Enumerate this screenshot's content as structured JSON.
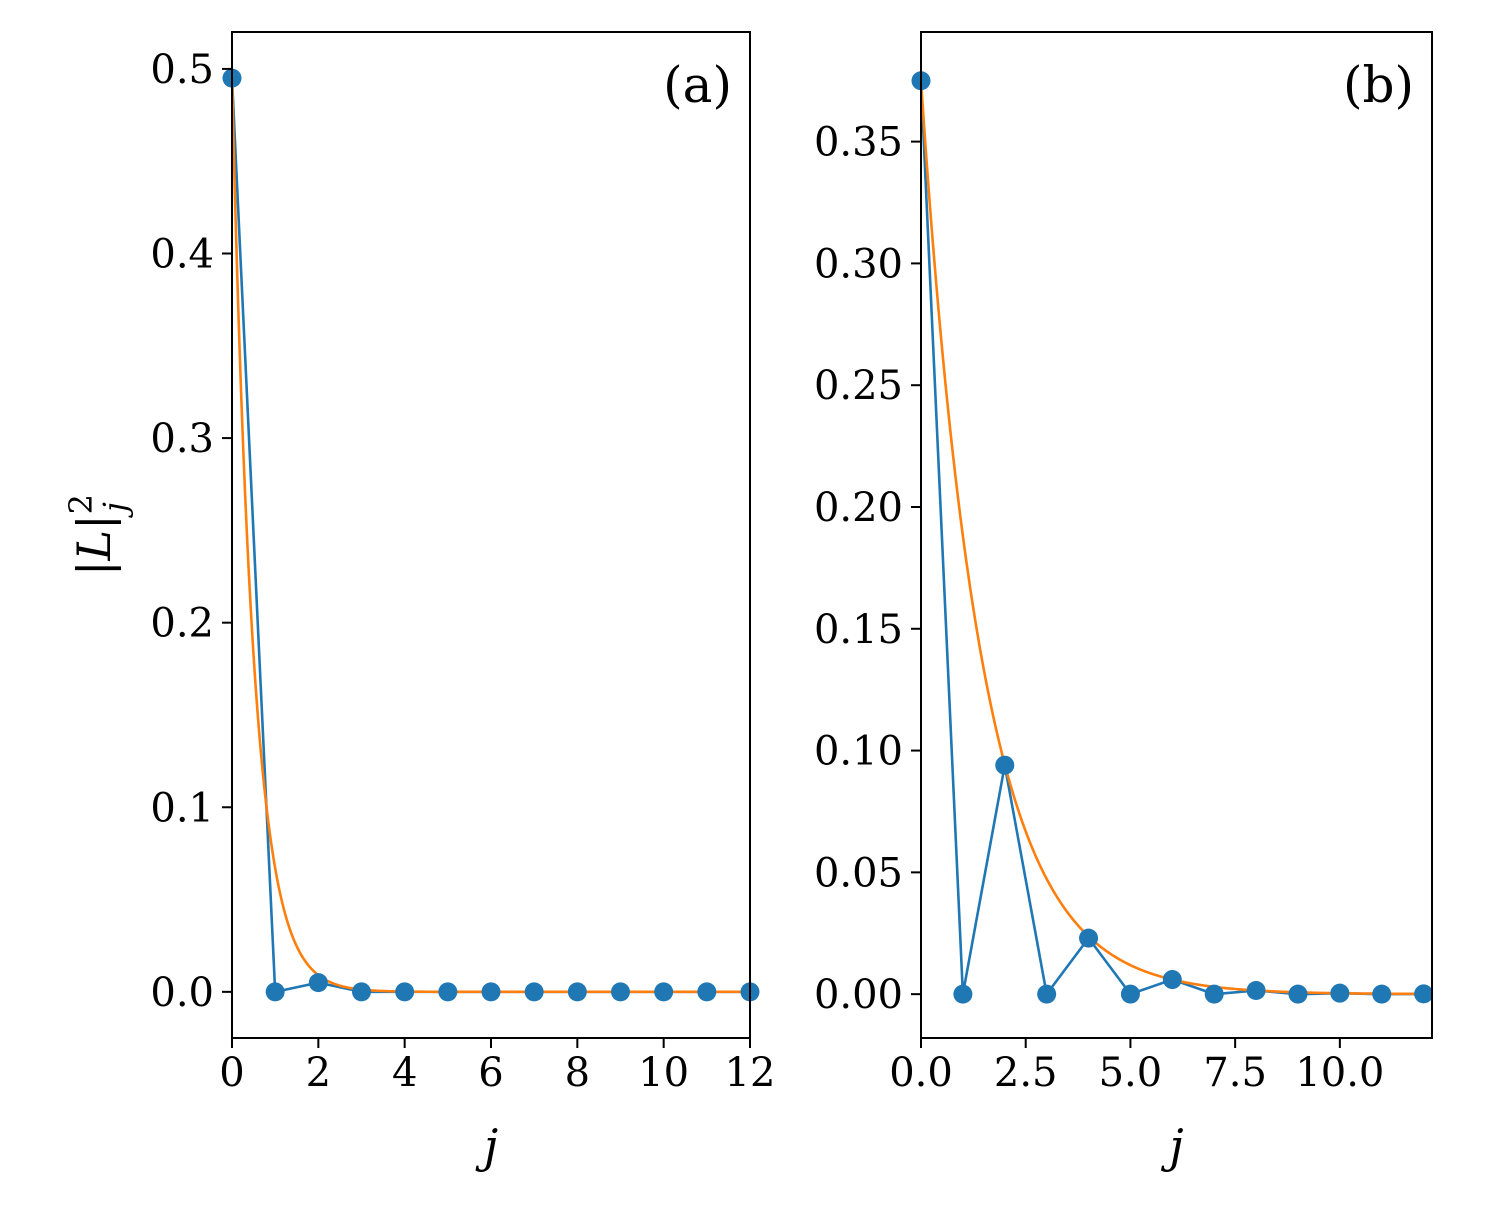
{
  "chart_data": [
    {
      "type": "line",
      "panel_label": "(a)",
      "xlabel": "j",
      "ylabel": "|L|",
      "ylabel_sup": "2",
      "ylabel_sub": "j",
      "xlim": [
        0,
        12
      ],
      "ylim": [
        -0.025,
        0.52
      ],
      "xticks": [
        0,
        2,
        4,
        6,
        8,
        10,
        12
      ],
      "xtick_labels": [
        "0",
        "2",
        "4",
        "6",
        "8",
        "10",
        "12"
      ],
      "yticks": [
        0.0,
        0.1,
        0.2,
        0.3,
        0.4,
        0.5
      ],
      "ytick_labels": [
        "0.0",
        "0.1",
        "0.2",
        "0.3",
        "0.4",
        "0.5"
      ],
      "series": [
        {
          "style": "line+markers",
          "color": "#1f77b4",
          "x": [
            0,
            1,
            2,
            3,
            4,
            5,
            6,
            7,
            8,
            9,
            10,
            11,
            12
          ],
          "y": [
            0.495,
            0.0,
            0.005,
            0.0,
            0.0,
            0.0,
            0.0,
            0.0,
            0.0,
            0.0,
            0.0,
            0.0,
            0.0
          ]
        },
        {
          "style": "line",
          "color": "#ff7f0e",
          "function": "exp",
          "amplitude": 0.495,
          "decay": 2.0
        }
      ]
    },
    {
      "type": "line",
      "panel_label": "(b)",
      "xlabel": "j",
      "xlim": [
        0,
        12.2
      ],
      "ylim": [
        -0.018,
        0.395
      ],
      "xticks": [
        0,
        2.5,
        5,
        7.5,
        10
      ],
      "xtick_labels": [
        "0.0",
        "2.5",
        "5.0",
        "7.5",
        "10.0"
      ],
      "yticks": [
        0.0,
        0.05,
        0.1,
        0.15,
        0.2,
        0.25,
        0.3,
        0.35
      ],
      "ytick_labels": [
        "0.00",
        "0.05",
        "0.10",
        "0.15",
        "0.20",
        "0.25",
        "0.30",
        "0.35"
      ],
      "series": [
        {
          "style": "line+markers",
          "color": "#1f77b4",
          "x": [
            0,
            1,
            2,
            3,
            4,
            5,
            6,
            7,
            8,
            9,
            10,
            11,
            12
          ],
          "y": [
            0.375,
            0.0,
            0.094,
            0.0,
            0.023,
            0.0,
            0.006,
            0.0,
            0.0015,
            0.0,
            0.0004,
            0.0,
            0.0001
          ]
        },
        {
          "style": "line",
          "color": "#ff7f0e",
          "function": "exp",
          "amplitude": 0.375,
          "decay": 0.69
        }
      ]
    }
  ]
}
